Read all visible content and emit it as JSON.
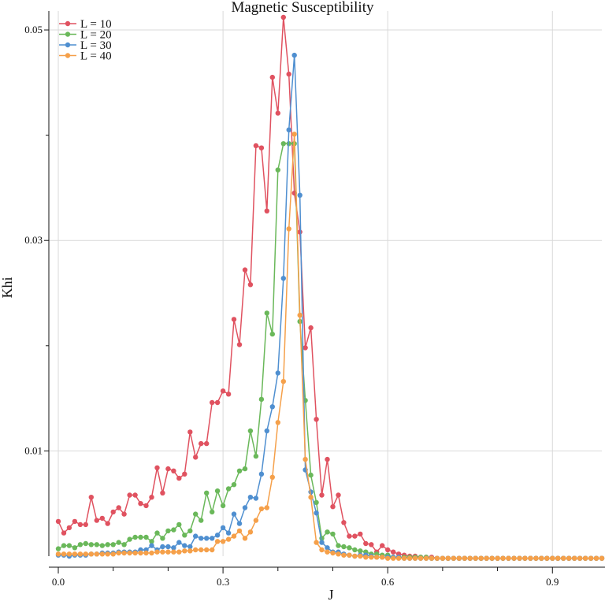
{
  "chart_data": {
    "type": "line",
    "title": "Magnetic Susceptibility",
    "xlabel": "J",
    "ylabel": "Khi",
    "xlim": [
      0,
      0.99
    ],
    "ylim": [
      0,
      0.0512
    ],
    "x_major_ticks": [
      0.0,
      0.3,
      0.6,
      0.9
    ],
    "x_tick_labels": [
      "0.0",
      "0.3",
      "0.6",
      "0.9"
    ],
    "x_minor_ticks": [
      0.1,
      0.2,
      0.4,
      0.5,
      0.7,
      0.8
    ],
    "y_major_ticks": [
      0.01,
      0.03,
      0.05
    ],
    "y_tick_labels": [
      "0.01",
      "0.03",
      "0.05"
    ],
    "y_minor_ticks": [
      0.02,
      0.04
    ],
    "grid": true,
    "legend_position": "top-left",
    "x": [
      0.0,
      0.01,
      0.02,
      0.03,
      0.04,
      0.05,
      0.06,
      0.07,
      0.08,
      0.09,
      0.1,
      0.11,
      0.12,
      0.13,
      0.14,
      0.15,
      0.16,
      0.17,
      0.18,
      0.19,
      0.2,
      0.21,
      0.22,
      0.23,
      0.24,
      0.25,
      0.26,
      0.27,
      0.28,
      0.29,
      0.3,
      0.31,
      0.32,
      0.33,
      0.34,
      0.35,
      0.36,
      0.37,
      0.38,
      0.39,
      0.4,
      0.41,
      0.42,
      0.43,
      0.44,
      0.45,
      0.46,
      0.47,
      0.48,
      0.49,
      0.5,
      0.51,
      0.52,
      0.53,
      0.54,
      0.55,
      0.56,
      0.57,
      0.58,
      0.59,
      0.6,
      0.61,
      0.62,
      0.63,
      0.64,
      0.65,
      0.66,
      0.67,
      0.68,
      0.69,
      0.7,
      0.71,
      0.72,
      0.73,
      0.74,
      0.75,
      0.76,
      0.77,
      0.78,
      0.79,
      0.8,
      0.81,
      0.82,
      0.83,
      0.84,
      0.85,
      0.86,
      0.87,
      0.88,
      0.89,
      0.9,
      0.91,
      0.92,
      0.93,
      0.94,
      0.95,
      0.96,
      0.97,
      0.98,
      0.99
    ],
    "series": [
      {
        "name": "L = 10",
        "color": "#e05260",
        "values": [
          0.0033,
          0.0022,
          0.0027,
          0.0033,
          0.003,
          0.003,
          0.0056,
          0.0034,
          0.0036,
          0.0031,
          0.0042,
          0.0046,
          0.004,
          0.0058,
          0.0058,
          0.005,
          0.0048,
          0.0056,
          0.0084,
          0.006,
          0.0083,
          0.0081,
          0.0074,
          0.0078,
          0.0118,
          0.0094,
          0.0107,
          0.0107,
          0.0146,
          0.0146,
          0.0157,
          0.0154,
          0.0225,
          0.0201,
          0.0272,
          0.0258,
          0.039,
          0.0388,
          0.0328,
          0.0455,
          0.0421,
          0.0512,
          0.0458,
          0.0345,
          0.0308,
          0.0198,
          0.0217,
          0.013,
          0.0058,
          0.0092,
          0.0047,
          0.0058,
          0.0032,
          0.0019,
          0.0019,
          0.0021,
          0.0012,
          0.0011,
          0.0004,
          0.001,
          0.0006,
          0.0004,
          0.0002,
          0.0001,
          0.0,
          0.0,
          -0.0001,
          -0.0001,
          -0.0001,
          -0.0002,
          -0.0002,
          -0.0002,
          -0.0002,
          -0.0002,
          -0.0002,
          -0.0002,
          -0.0002,
          -0.0002,
          -0.0002,
          -0.0002,
          -0.0002,
          -0.0002,
          -0.0002,
          -0.0002,
          -0.0002,
          -0.0002,
          -0.0002,
          -0.0002,
          -0.0002,
          -0.0002,
          -0.0002,
          -0.0002,
          -0.0002,
          -0.0002,
          -0.0002,
          -0.0002,
          -0.0002,
          -0.0002,
          -0.0002,
          -0.0002
        ]
      },
      {
        "name": "L = 20",
        "color": "#6ab85a",
        "values": [
          0.0007,
          0.001,
          0.001,
          0.0008,
          0.0011,
          0.0012,
          0.0011,
          0.0011,
          0.001,
          0.0011,
          0.0011,
          0.0013,
          0.0011,
          0.0016,
          0.0018,
          0.0018,
          0.0018,
          0.0014,
          0.0022,
          0.0017,
          0.0024,
          0.0025,
          0.003,
          0.002,
          0.0024,
          0.004,
          0.0034,
          0.006,
          0.0042,
          0.0062,
          0.0048,
          0.0064,
          0.0068,
          0.0081,
          0.0083,
          0.0119,
          0.0095,
          0.0149,
          0.0231,
          0.0211,
          0.0367,
          0.0392,
          0.0392,
          0.0392,
          0.0223,
          0.0148,
          0.0077,
          0.0051,
          0.0017,
          0.0023,
          0.0021,
          0.001,
          0.0009,
          0.0008,
          0.0006,
          0.0005,
          0.0004,
          0.0002,
          0.0002,
          0.0001,
          0.0001,
          -0.0001,
          -0.0001,
          -0.0001,
          -0.0001,
          -0.0001,
          -0.0001,
          -0.0001,
          -0.0002,
          -0.0002,
          -0.0002,
          -0.0002,
          -0.0002,
          -0.0002,
          -0.0002,
          -0.0002,
          -0.0002,
          -0.0002,
          -0.0002,
          -0.0002,
          -0.0002,
          -0.0002,
          -0.0002,
          -0.0002,
          -0.0002,
          -0.0002,
          -0.0002,
          -0.0002,
          -0.0002,
          -0.0002,
          -0.0002,
          -0.0002,
          -0.0002,
          -0.0002,
          -0.0002,
          -0.0002,
          -0.0002,
          -0.0002,
          -0.0002,
          -0.0002
        ]
      },
      {
        "name": "L = 30",
        "color": "#4f8fd0",
        "values": [
          0.0001,
          0.0001,
          0.0,
          0.0001,
          0.0001,
          0.0001,
          0.0002,
          0.0002,
          0.0003,
          0.0003,
          0.0003,
          0.0004,
          0.0004,
          0.0004,
          0.0004,
          0.0006,
          0.0006,
          0.001,
          0.0006,
          0.0009,
          0.0009,
          0.0008,
          0.0013,
          0.001,
          0.0009,
          0.0019,
          0.0017,
          0.0017,
          0.0017,
          0.002,
          0.0027,
          0.0022,
          0.004,
          0.0031,
          0.0046,
          0.0056,
          0.0055,
          0.0078,
          0.0119,
          0.0142,
          0.0174,
          0.0264,
          0.0405,
          0.0476,
          0.0343,
          0.0082,
          0.0061,
          0.0041,
          0.0013,
          0.0008,
          0.0004,
          0.0004,
          0.0002,
          0.0001,
          0.0,
          0.0001,
          0.0001,
          0.0,
          -0.0001,
          -0.0001,
          -0.0001,
          -0.0001,
          -0.0001,
          -0.0002,
          -0.0002,
          -0.0002,
          -0.0002,
          -0.0002,
          -0.0002,
          -0.0002,
          -0.0002,
          -0.0002,
          -0.0002,
          -0.0002,
          -0.0002,
          -0.0002,
          -0.0002,
          -0.0002,
          -0.0002,
          -0.0002,
          -0.0002,
          -0.0002,
          -0.0002,
          -0.0002,
          -0.0002,
          -0.0002,
          -0.0002,
          -0.0002,
          -0.0002,
          -0.0002,
          -0.0002,
          -0.0002,
          -0.0002,
          -0.0002,
          -0.0002,
          -0.0002,
          -0.0002,
          -0.0002,
          -0.0002,
          -0.0002
        ]
      },
      {
        "name": "L = 40",
        "color": "#f5a04a",
        "values": [
          0.0002,
          0.0002,
          0.0002,
          0.0002,
          0.0002,
          0.0002,
          0.0002,
          0.0002,
          0.0002,
          0.0002,
          0.0002,
          0.0003,
          0.0003,
          0.0003,
          0.0003,
          0.0003,
          0.0003,
          0.0003,
          0.0004,
          0.0004,
          0.0004,
          0.0004,
          0.0004,
          0.0005,
          0.0005,
          0.0006,
          0.0006,
          0.0006,
          0.0006,
          0.0014,
          0.0014,
          0.0016,
          0.0019,
          0.0024,
          0.0017,
          0.0023,
          0.0034,
          0.0045,
          0.0046,
          0.0075,
          0.0127,
          0.0166,
          0.0311,
          0.0401,
          0.0229,
          0.0092,
          0.0056,
          0.0013,
          0.0006,
          0.0004,
          0.0003,
          0.0002,
          0.0001,
          0.0001,
          0.0,
          0.0,
          -0.0001,
          -0.0001,
          -0.0001,
          -0.0001,
          -0.0002,
          -0.0002,
          -0.0002,
          -0.0002,
          -0.0002,
          -0.0002,
          -0.0002,
          -0.0002,
          -0.0002,
          -0.0002,
          -0.0002,
          -0.0002,
          -0.0002,
          -0.0002,
          -0.0002,
          -0.0002,
          -0.0002,
          -0.0002,
          -0.0002,
          -0.0002,
          -0.0002,
          -0.0002,
          -0.0002,
          -0.0002,
          -0.0002,
          -0.0002,
          -0.0002,
          -0.0002,
          -0.0002,
          -0.0002,
          -0.0002,
          -0.0002,
          -0.0002,
          -0.0002,
          -0.0002,
          -0.0002,
          -0.0002,
          -0.0002,
          -0.0002,
          -0.0002
        ]
      }
    ]
  }
}
